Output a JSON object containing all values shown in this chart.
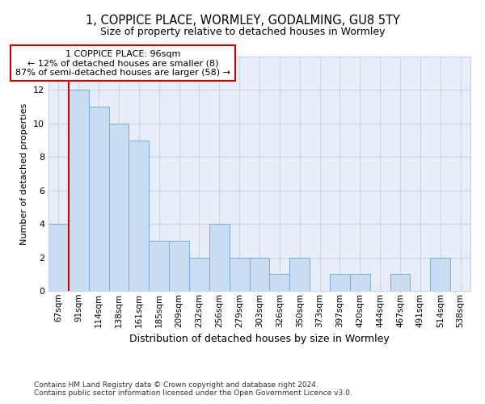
{
  "title": "1, COPPICE PLACE, WORMLEY, GODALMING, GU8 5TY",
  "subtitle": "Size of property relative to detached houses in Wormley",
  "xlabel": "Distribution of detached houses by size in Wormley",
  "ylabel": "Number of detached properties",
  "bar_labels": [
    "67sqm",
    "91sqm",
    "114sqm",
    "138sqm",
    "161sqm",
    "185sqm",
    "209sqm",
    "232sqm",
    "256sqm",
    "279sqm",
    "303sqm",
    "326sqm",
    "350sqm",
    "373sqm",
    "397sqm",
    "420sqm",
    "444sqm",
    "467sqm",
    "491sqm",
    "514sqm",
    "538sqm"
  ],
  "values": [
    4,
    12,
    11,
    10,
    9,
    3,
    3,
    2,
    4,
    2,
    2,
    1,
    2,
    0,
    1,
    1,
    0,
    1,
    0,
    2,
    0
  ],
  "bar_color": "#c9ddf2",
  "bar_edge_color": "#7aadd4",
  "red_line_index": 1,
  "annotation_text": "1 COPPICE PLACE: 96sqm\n← 12% of detached houses are smaller (8)\n87% of semi-detached houses are larger (58) →",
  "annotation_box_color": "white",
  "annotation_box_edge_color": "#cc0000",
  "red_line_color": "#cc0000",
  "ylim": [
    0,
    14
  ],
  "yticks": [
    0,
    2,
    4,
    6,
    8,
    10,
    12,
    14
  ],
  "grid_color": "#c8d4e8",
  "background_color": "#e8eef8",
  "footer_line1": "Contains HM Land Registry data © Crown copyright and database right 2024.",
  "footer_line2": "Contains public sector information licensed under the Open Government Licence v3.0.",
  "title_fontsize": 10.5,
  "subtitle_fontsize": 9,
  "ylabel_fontsize": 8,
  "xlabel_fontsize": 9,
  "tick_fontsize": 7.5,
  "footer_fontsize": 6.5,
  "annotation_fontsize": 8
}
